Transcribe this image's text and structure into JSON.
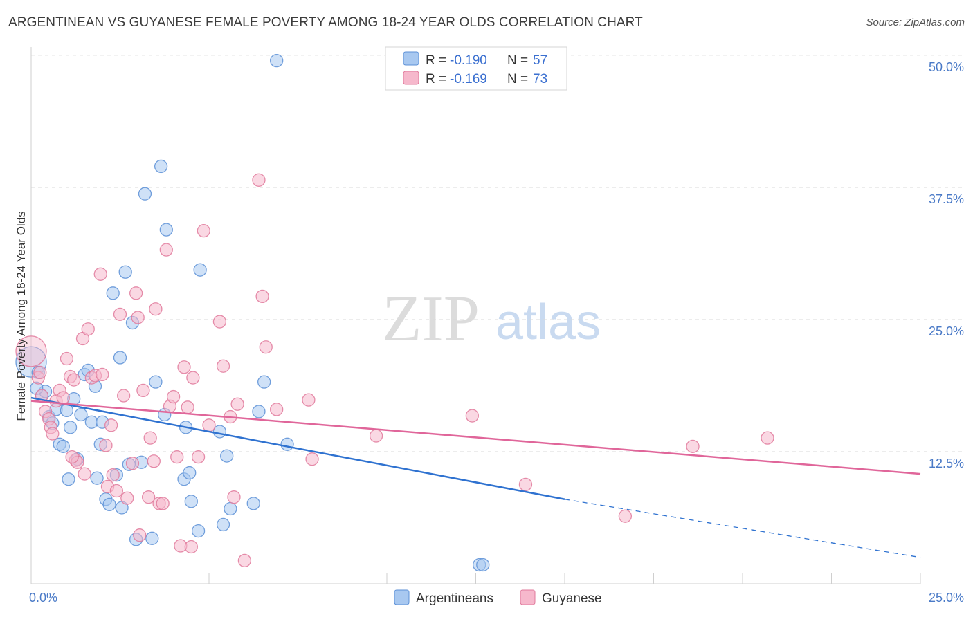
{
  "title": "ARGENTINEAN VS GUYANESE FEMALE POVERTY AMONG 18-24 YEAR OLDS CORRELATION CHART",
  "source": "Source: ZipAtlas.com",
  "watermark": {
    "zip": "ZIP",
    "atlas": "atlas"
  },
  "colors": {
    "argentineans_fill": "#a8c8f0",
    "argentineans_stroke": "#5b8fd6",
    "argentineans_line": "#2f72d0",
    "guyanese_fill": "#f6b8cc",
    "guyanese_stroke": "#e0799b",
    "guyanese_line": "#e0669a",
    "tick_label": "#4a7ac7"
  },
  "legend": {
    "rows": [
      {
        "r_label": "R = ",
        "r_value": "-0.190",
        "n_label": "N = ",
        "n_value": "57"
      },
      {
        "r_label": "R = ",
        "r_value": "-0.169",
        "n_label": "N = ",
        "n_value": "73"
      }
    ]
  },
  "chart_data": {
    "type": "scatter",
    "ylabel": "Female Poverty Among 18-24 Year Olds",
    "xlim": [
      0,
      25
    ],
    "ylim": [
      0,
      50
    ],
    "x_tick_labels": [
      "0.0%",
      "25.0%"
    ],
    "y_ticks": [
      12.5,
      25.0,
      37.5,
      50.0
    ],
    "y_tick_labels": [
      "12.5%",
      "25.0%",
      "37.5%",
      "50.0%"
    ],
    "grid": true,
    "series": [
      {
        "name": "Argentineans",
        "trend": {
          "x": [
            0,
            15
          ],
          "y": [
            17.6,
            8.0
          ],
          "dashed_to": [
            25,
            2.5
          ]
        },
        "points": [
          {
            "x": 0.0,
            "y": 21.0,
            "big": true
          },
          {
            "x": 0.2,
            "y": 20.0
          },
          {
            "x": 0.3,
            "y": 17.8
          },
          {
            "x": 0.4,
            "y": 18.2
          },
          {
            "x": 0.5,
            "y": 15.8
          },
          {
            "x": 0.6,
            "y": 15.2
          },
          {
            "x": 0.7,
            "y": 16.5
          },
          {
            "x": 0.8,
            "y": 13.2
          },
          {
            "x": 0.9,
            "y": 13.0
          },
          {
            "x": 1.0,
            "y": 16.4
          },
          {
            "x": 1.1,
            "y": 14.8
          },
          {
            "x": 1.2,
            "y": 17.5
          },
          {
            "x": 1.3,
            "y": 11.8
          },
          {
            "x": 1.4,
            "y": 16.0
          },
          {
            "x": 1.5,
            "y": 19.8
          },
          {
            "x": 1.6,
            "y": 20.2
          },
          {
            "x": 1.7,
            "y": 15.3
          },
          {
            "x": 1.8,
            "y": 18.7
          },
          {
            "x": 1.85,
            "y": 10.0
          },
          {
            "x": 1.95,
            "y": 13.2
          },
          {
            "x": 2.0,
            "y": 15.3
          },
          {
            "x": 2.1,
            "y": 8.0
          },
          {
            "x": 2.2,
            "y": 7.5
          },
          {
            "x": 2.3,
            "y": 27.5
          },
          {
            "x": 2.4,
            "y": 10.3
          },
          {
            "x": 2.5,
            "y": 21.4
          },
          {
            "x": 2.55,
            "y": 7.2
          },
          {
            "x": 2.65,
            "y": 29.5
          },
          {
            "x": 2.75,
            "y": 11.3
          },
          {
            "x": 2.85,
            "y": 24.7
          },
          {
            "x": 2.95,
            "y": 4.2
          },
          {
            "x": 3.1,
            "y": 11.5
          },
          {
            "x": 3.2,
            "y": 36.9
          },
          {
            "x": 3.4,
            "y": 4.3
          },
          {
            "x": 3.5,
            "y": 19.1
          },
          {
            "x": 3.65,
            "y": 39.5
          },
          {
            "x": 3.75,
            "y": 16.0
          },
          {
            "x": 3.8,
            "y": 33.5
          },
          {
            "x": 4.3,
            "y": 9.9
          },
          {
            "x": 4.35,
            "y": 14.8
          },
          {
            "x": 4.45,
            "y": 10.5
          },
          {
            "x": 4.5,
            "y": 7.8
          },
          {
            "x": 4.7,
            "y": 5.0
          },
          {
            "x": 4.75,
            "y": 29.7
          },
          {
            "x": 5.3,
            "y": 14.4
          },
          {
            "x": 5.4,
            "y": 5.6
          },
          {
            "x": 5.5,
            "y": 12.1
          },
          {
            "x": 5.6,
            "y": 7.1
          },
          {
            "x": 6.25,
            "y": 7.6
          },
          {
            "x": 6.4,
            "y": 16.3
          },
          {
            "x": 6.55,
            "y": 19.1
          },
          {
            "x": 6.9,
            "y": 49.5
          },
          {
            "x": 7.2,
            "y": 13.2
          },
          {
            "x": 12.6,
            "y": 1.8
          },
          {
            "x": 12.7,
            "y": 1.8
          },
          {
            "x": 0.15,
            "y": 18.5
          },
          {
            "x": 1.05,
            "y": 9.9
          }
        ]
      },
      {
        "name": "Guyanese",
        "trend": {
          "x": [
            0,
            25
          ],
          "y": [
            17.3,
            10.4
          ]
        },
        "points": [
          {
            "x": 0.0,
            "y": 22.0,
            "big": true
          },
          {
            "x": 0.2,
            "y": 19.5
          },
          {
            "x": 0.3,
            "y": 17.8
          },
          {
            "x": 0.4,
            "y": 16.3
          },
          {
            "x": 0.5,
            "y": 15.6
          },
          {
            "x": 0.55,
            "y": 14.8
          },
          {
            "x": 0.6,
            "y": 14.2
          },
          {
            "x": 0.7,
            "y": 17.3
          },
          {
            "x": 0.8,
            "y": 18.3
          },
          {
            "x": 0.9,
            "y": 17.6
          },
          {
            "x": 1.0,
            "y": 21.3
          },
          {
            "x": 1.1,
            "y": 19.6
          },
          {
            "x": 1.2,
            "y": 19.3
          },
          {
            "x": 1.25,
            "y": 11.7
          },
          {
            "x": 1.3,
            "y": 11.5
          },
          {
            "x": 1.45,
            "y": 23.2
          },
          {
            "x": 1.5,
            "y": 10.4
          },
          {
            "x": 1.6,
            "y": 24.1
          },
          {
            "x": 1.7,
            "y": 19.5
          },
          {
            "x": 1.8,
            "y": 19.7
          },
          {
            "x": 1.95,
            "y": 29.3
          },
          {
            "x": 2.0,
            "y": 19.8
          },
          {
            "x": 2.1,
            "y": 13.1
          },
          {
            "x": 2.15,
            "y": 9.2
          },
          {
            "x": 2.25,
            "y": 15.0
          },
          {
            "x": 2.3,
            "y": 10.3
          },
          {
            "x": 2.4,
            "y": 8.8
          },
          {
            "x": 2.5,
            "y": 25.5
          },
          {
            "x": 2.6,
            "y": 17.8
          },
          {
            "x": 2.7,
            "y": 8.1
          },
          {
            "x": 2.85,
            "y": 11.4
          },
          {
            "x": 2.95,
            "y": 27.5
          },
          {
            "x": 3.0,
            "y": 25.2
          },
          {
            "x": 3.05,
            "y": 4.6
          },
          {
            "x": 3.15,
            "y": 18.3
          },
          {
            "x": 3.3,
            "y": 8.2
          },
          {
            "x": 3.35,
            "y": 13.8
          },
          {
            "x": 3.45,
            "y": 11.6
          },
          {
            "x": 3.5,
            "y": 26.0
          },
          {
            "x": 3.6,
            "y": 7.6
          },
          {
            "x": 3.7,
            "y": 7.6
          },
          {
            "x": 3.8,
            "y": 31.6
          },
          {
            "x": 3.9,
            "y": 16.8
          },
          {
            "x": 4.0,
            "y": 17.7
          },
          {
            "x": 4.1,
            "y": 12.0
          },
          {
            "x": 4.2,
            "y": 3.6
          },
          {
            "x": 4.3,
            "y": 20.5
          },
          {
            "x": 4.4,
            "y": 16.7
          },
          {
            "x": 4.5,
            "y": 3.5
          },
          {
            "x": 4.55,
            "y": 19.5
          },
          {
            "x": 4.7,
            "y": 12.0
          },
          {
            "x": 4.85,
            "y": 33.4
          },
          {
            "x": 5.0,
            "y": 15.0
          },
          {
            "x": 5.3,
            "y": 24.8
          },
          {
            "x": 5.4,
            "y": 20.6
          },
          {
            "x": 5.6,
            "y": 15.8
          },
          {
            "x": 5.7,
            "y": 8.2
          },
          {
            "x": 5.8,
            "y": 17.0
          },
          {
            "x": 6.0,
            "y": 2.2
          },
          {
            "x": 6.4,
            "y": 38.2
          },
          {
            "x": 6.5,
            "y": 27.2
          },
          {
            "x": 6.6,
            "y": 22.4
          },
          {
            "x": 6.9,
            "y": 16.5
          },
          {
            "x": 7.9,
            "y": 11.8
          },
          {
            "x": 7.8,
            "y": 17.4
          },
          {
            "x": 9.7,
            "y": 14.0
          },
          {
            "x": 12.4,
            "y": 15.9
          },
          {
            "x": 13.9,
            "y": 9.4
          },
          {
            "x": 16.7,
            "y": 6.4
          },
          {
            "x": 18.6,
            "y": 13.0
          },
          {
            "x": 20.7,
            "y": 13.8
          },
          {
            "x": 0.25,
            "y": 20.0
          },
          {
            "x": 1.15,
            "y": 12.0
          }
        ]
      }
    ]
  }
}
